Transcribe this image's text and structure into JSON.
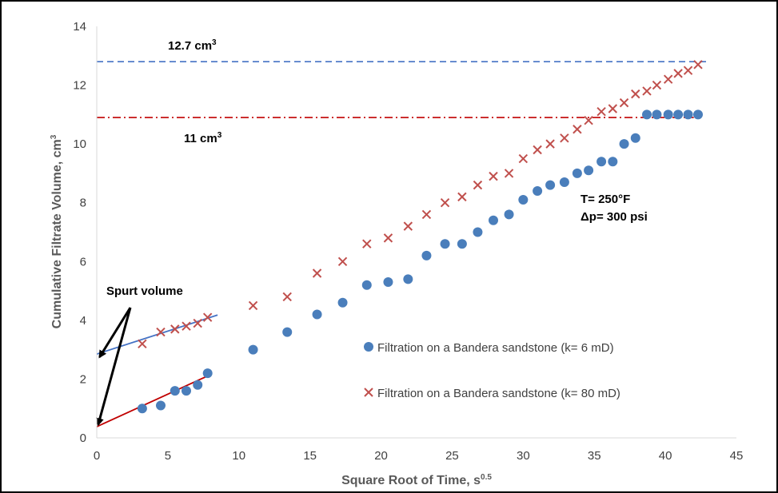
{
  "chart_data": {
    "type": "scatter",
    "title": "",
    "xlabel": "Square Root of Time, s",
    "xlabel_sup": "0.5",
    "ylabel": "Cumulative Filtrate Volume, cm",
    "ylabel_sup": "3",
    "xlim": [
      0,
      45
    ],
    "ylim": [
      0,
      14
    ],
    "xticks": [
      0,
      5,
      10,
      15,
      20,
      25,
      30,
      35,
      40,
      45
    ],
    "yticks": [
      0,
      2,
      4,
      6,
      8,
      10,
      12,
      14
    ],
    "grid": false,
    "legend_position": "right",
    "series": [
      {
        "name": "Filtration on a Bandera sandstone (k= 6 mD)",
        "marker": "circle",
        "color": "#4a7ebb",
        "x": [
          3.2,
          4.5,
          5.5,
          6.3,
          7.1,
          7.8,
          11.0,
          13.4,
          15.5,
          17.3,
          19.0,
          20.5,
          21.9,
          23.2,
          24.5,
          25.7,
          26.8,
          27.9,
          29.0,
          30.0,
          31.0,
          31.9,
          32.9,
          33.8,
          34.6,
          35.5,
          36.3,
          37.1,
          37.9,
          38.7,
          39.4,
          40.2,
          40.9,
          41.6,
          42.3
        ],
        "y": [
          1.0,
          1.1,
          1.6,
          1.6,
          1.8,
          2.2,
          3.0,
          3.6,
          4.2,
          4.6,
          5.2,
          5.3,
          5.4,
          6.2,
          6.6,
          6.6,
          7.0,
          7.4,
          7.6,
          8.1,
          8.4,
          8.6,
          8.7,
          9.0,
          9.1,
          9.4,
          9.4,
          10.0,
          10.2,
          11.0,
          11.0,
          11.0,
          11.0,
          11.0,
          11.0
        ]
      },
      {
        "name": "Filtration on a Bandera sandstone (k= 80 mD)",
        "marker": "x",
        "color": "#c0504d",
        "x": [
          3.2,
          4.5,
          5.5,
          6.3,
          7.1,
          7.8,
          11.0,
          13.4,
          15.5,
          17.3,
          19.0,
          20.5,
          21.9,
          23.2,
          24.5,
          25.7,
          26.8,
          27.9,
          29.0,
          30.0,
          31.0,
          31.9,
          32.9,
          33.8,
          34.6,
          35.5,
          36.3,
          37.1,
          37.9,
          38.7,
          39.4,
          40.2,
          40.9,
          41.6,
          42.3
        ],
        "y": [
          3.2,
          3.6,
          3.7,
          3.8,
          3.9,
          4.1,
          4.5,
          4.8,
          5.6,
          6.0,
          6.6,
          6.8,
          7.2,
          7.6,
          8.0,
          8.2,
          8.6,
          8.9,
          9.0,
          9.5,
          9.8,
          10.0,
          10.2,
          10.5,
          10.8,
          11.1,
          11.2,
          11.4,
          11.7,
          11.8,
          12.0,
          12.2,
          12.4,
          12.5,
          12.7
        ]
      }
    ],
    "reference_lines": [
      {
        "y": 12.8,
        "style": "dashed",
        "color": "#4472c4",
        "x_from": 0,
        "x_to": 43
      },
      {
        "y": 10.9,
        "style": "dash-dot",
        "color": "#c00000",
        "x_from": 0,
        "x_to": 42
      }
    ],
    "fit_lines": [
      {
        "x": [
          0,
          8.5
        ],
        "y": [
          2.85,
          4.18
        ],
        "color": "#4472c4"
      },
      {
        "x": [
          0,
          8
        ],
        "y": [
          0.38,
          2.15
        ],
        "color": "#c00000"
      }
    ],
    "annotations": {
      "line_127": {
        "text": "12.7 cm",
        "sup": "3"
      },
      "line_11": {
        "text": "11 cm",
        "sup": "3"
      },
      "temperature": "T= 250°F",
      "pressure": "Δp= 300 psi",
      "spurt": "Spurt volume"
    }
  }
}
